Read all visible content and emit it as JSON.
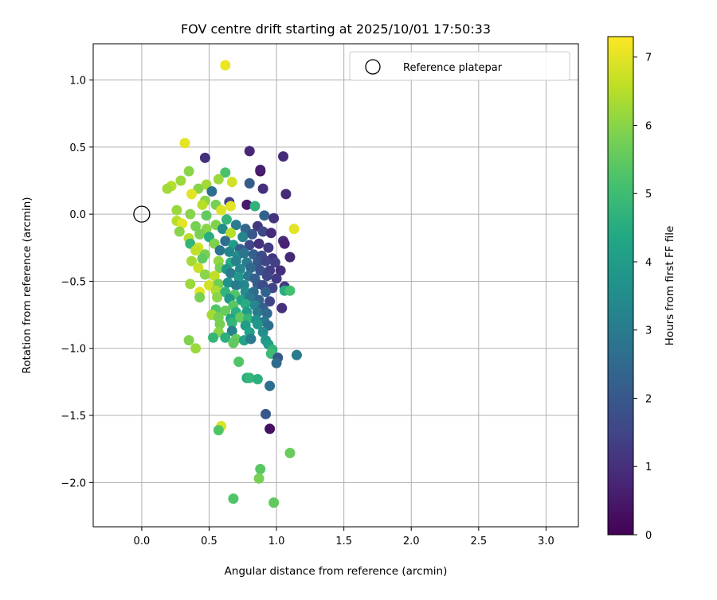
{
  "chart_data": {
    "type": "scatter",
    "title": "FOV centre drift starting at 2025/10/01 17:50:33",
    "xlabel": "Angular distance from reference (arcmin)",
    "ylabel": "Rotation from reference (arcmin)",
    "xlim": [
      -0.36,
      3.24
    ],
    "ylim": [
      -2.33,
      1.27
    ],
    "xticks": [
      0.0,
      0.5,
      1.0,
      1.5,
      2.0,
      2.5,
      3.0
    ],
    "xtick_labels": [
      "0.0",
      "0.5",
      "1.0",
      "1.5",
      "2.0",
      "2.5",
      "3.0"
    ],
    "yticks": [
      1.0,
      0.5,
      0.0,
      -0.5,
      -1.0,
      -1.5,
      -2.0
    ],
    "ytick_labels": [
      "1.0",
      "0.5",
      "0.0",
      "−0.5",
      "−1.0",
      "−1.5",
      "−2.0"
    ],
    "grid": true,
    "legend": {
      "position": "top-right",
      "entries": [
        "Reference platepar"
      ]
    },
    "reference": {
      "x": 0.0,
      "y": 0.0
    },
    "colorbar": {
      "label": "Hours from first FF file",
      "range": [
        0,
        7.3
      ],
      "ticks": [
        0,
        1,
        2,
        3,
        4,
        5,
        6,
        7
      ],
      "tick_labels": [
        "0",
        "1",
        "2",
        "3",
        "4",
        "5",
        "6",
        "7"
      ],
      "colormap": "viridis"
    },
    "points": [
      {
        "x": 0.62,
        "y": 1.11,
        "h": 7.1
      },
      {
        "x": 0.32,
        "y": 0.53,
        "h": 7.0
      },
      {
        "x": 0.47,
        "y": 0.42,
        "h": 1.0
      },
      {
        "x": 0.8,
        "y": 0.47,
        "h": 0.8
      },
      {
        "x": 1.05,
        "y": 0.43,
        "h": 0.9
      },
      {
        "x": 0.88,
        "y": 0.32,
        "h": 0.1
      },
      {
        "x": 0.88,
        "y": 0.33,
        "h": 0.6
      },
      {
        "x": 0.35,
        "y": 0.32,
        "h": 6.0
      },
      {
        "x": 0.62,
        "y": 0.31,
        "h": 5.2
      },
      {
        "x": 0.57,
        "y": 0.26,
        "h": 6.2
      },
      {
        "x": 0.67,
        "y": 0.24,
        "h": 6.8
      },
      {
        "x": 0.29,
        "y": 0.25,
        "h": 6.2
      },
      {
        "x": 0.48,
        "y": 0.22,
        "h": 6.3
      },
      {
        "x": 0.8,
        "y": 0.23,
        "h": 2.1
      },
      {
        "x": 0.22,
        "y": 0.21,
        "h": 6.5
      },
      {
        "x": 0.19,
        "y": 0.19,
        "h": 6.3
      },
      {
        "x": 0.42,
        "y": 0.19,
        "h": 6.0
      },
      {
        "x": 0.52,
        "y": 0.17,
        "h": 2.7
      },
      {
        "x": 0.9,
        "y": 0.19,
        "h": 1.0
      },
      {
        "x": 1.07,
        "y": 0.15,
        "h": 0.9
      },
      {
        "x": 0.37,
        "y": 0.15,
        "h": 7.0
      },
      {
        "x": 0.47,
        "y": 0.1,
        "h": 6.0
      },
      {
        "x": 0.55,
        "y": 0.07,
        "h": 5.8
      },
      {
        "x": 0.65,
        "y": 0.09,
        "h": 1.5
      },
      {
        "x": 0.66,
        "y": 0.06,
        "h": 7.0
      },
      {
        "x": 0.78,
        "y": 0.07,
        "h": 0.5
      },
      {
        "x": 0.84,
        "y": 0.06,
        "h": 4.7
      },
      {
        "x": 0.45,
        "y": 0.07,
        "h": 6.5
      },
      {
        "x": 0.26,
        "y": 0.03,
        "h": 6.2
      },
      {
        "x": 0.36,
        "y": 0.0,
        "h": 6.0
      },
      {
        "x": 0.48,
        "y": -0.01,
        "h": 5.5
      },
      {
        "x": 0.59,
        "y": 0.03,
        "h": 6.9
      },
      {
        "x": 0.91,
        "y": -0.01,
        "h": 2.3
      },
      {
        "x": 0.98,
        "y": -0.03,
        "h": 1.1
      },
      {
        "x": 0.26,
        "y": -0.05,
        "h": 6.5
      },
      {
        "x": 0.3,
        "y": -0.07,
        "h": 7.0
      },
      {
        "x": 0.4,
        "y": -0.09,
        "h": 5.8
      },
      {
        "x": 0.48,
        "y": -0.11,
        "h": 6.0
      },
      {
        "x": 0.55,
        "y": -0.08,
        "h": 5.9
      },
      {
        "x": 0.63,
        "y": -0.04,
        "h": 4.8
      },
      {
        "x": 0.7,
        "y": -0.08,
        "h": 3.0
      },
      {
        "x": 0.77,
        "y": -0.11,
        "h": 2.4
      },
      {
        "x": 0.86,
        "y": -0.09,
        "h": 1.2
      },
      {
        "x": 1.13,
        "y": -0.11,
        "h": 7.0
      },
      {
        "x": 0.28,
        "y": -0.13,
        "h": 6.0
      },
      {
        "x": 0.35,
        "y": -0.18,
        "h": 6.5
      },
      {
        "x": 0.43,
        "y": -0.15,
        "h": 5.8
      },
      {
        "x": 0.5,
        "y": -0.17,
        "h": 4.5
      },
      {
        "x": 0.6,
        "y": -0.11,
        "h": 3.5
      },
      {
        "x": 0.66,
        "y": -0.14,
        "h": 6.5
      },
      {
        "x": 0.75,
        "y": -0.17,
        "h": 3.3
      },
      {
        "x": 0.82,
        "y": -0.15,
        "h": 2.0
      },
      {
        "x": 0.9,
        "y": -0.13,
        "h": 1.6
      },
      {
        "x": 0.96,
        "y": -0.14,
        "h": 0.9
      },
      {
        "x": 1.05,
        "y": -0.2,
        "h": 0.9
      },
      {
        "x": 0.36,
        "y": -0.22,
        "h": 4.8
      },
      {
        "x": 0.42,
        "y": -0.25,
        "h": 6.8
      },
      {
        "x": 0.54,
        "y": -0.22,
        "h": 5.9
      },
      {
        "x": 0.62,
        "y": -0.2,
        "h": 2.6
      },
      {
        "x": 0.68,
        "y": -0.23,
        "h": 4.0
      },
      {
        "x": 0.73,
        "y": -0.26,
        "h": 2.2
      },
      {
        "x": 0.8,
        "y": -0.23,
        "h": 1.6
      },
      {
        "x": 0.87,
        "y": -0.22,
        "h": 1.0
      },
      {
        "x": 0.94,
        "y": -0.25,
        "h": 1.2
      },
      {
        "x": 1.06,
        "y": -0.22,
        "h": 0.7
      },
      {
        "x": 0.4,
        "y": -0.27,
        "h": 6.6
      },
      {
        "x": 0.47,
        "y": -0.3,
        "h": 5.8
      },
      {
        "x": 0.58,
        "y": -0.27,
        "h": 2.8
      },
      {
        "x": 0.65,
        "y": -0.28,
        "h": 3.3
      },
      {
        "x": 0.71,
        "y": -0.31,
        "h": 3.5
      },
      {
        "x": 0.76,
        "y": -0.29,
        "h": 2.8
      },
      {
        "x": 0.83,
        "y": -0.3,
        "h": 2.2
      },
      {
        "x": 0.89,
        "y": -0.31,
        "h": 1.7
      },
      {
        "x": 0.97,
        "y": -0.33,
        "h": 1.1
      },
      {
        "x": 1.1,
        "y": -0.32,
        "h": 0.8
      },
      {
        "x": 0.37,
        "y": -0.35,
        "h": 6.3
      },
      {
        "x": 0.45,
        "y": -0.33,
        "h": 5.5
      },
      {
        "x": 0.57,
        "y": -0.35,
        "h": 6.1
      },
      {
        "x": 0.66,
        "y": -0.36,
        "h": 4.5
      },
      {
        "x": 0.7,
        "y": -0.35,
        "h": 3.2
      },
      {
        "x": 0.78,
        "y": -0.36,
        "h": 3.0
      },
      {
        "x": 0.86,
        "y": -0.36,
        "h": 2.0
      },
      {
        "x": 0.92,
        "y": -0.35,
        "h": 1.5
      },
      {
        "x": 0.99,
        "y": -0.36,
        "h": 1.4
      },
      {
        "x": 0.42,
        "y": -0.4,
        "h": 6.7
      },
      {
        "x": 0.58,
        "y": -0.4,
        "h": 5.8
      },
      {
        "x": 0.63,
        "y": -0.41,
        "h": 3.9
      },
      {
        "x": 0.73,
        "y": -0.41,
        "h": 3.4
      },
      {
        "x": 0.81,
        "y": -0.4,
        "h": 2.5
      },
      {
        "x": 0.88,
        "y": -0.42,
        "h": 1.8
      },
      {
        "x": 0.95,
        "y": -0.42,
        "h": 1.3
      },
      {
        "x": 1.03,
        "y": -0.42,
        "h": 1.0
      },
      {
        "x": 0.47,
        "y": -0.45,
        "h": 6.0
      },
      {
        "x": 0.54,
        "y": -0.46,
        "h": 6.6
      },
      {
        "x": 0.66,
        "y": -0.44,
        "h": 3.0
      },
      {
        "x": 0.72,
        "y": -0.47,
        "h": 3.8
      },
      {
        "x": 0.79,
        "y": -0.46,
        "h": 2.9
      },
      {
        "x": 0.84,
        "y": -0.48,
        "h": 2.3
      },
      {
        "x": 0.93,
        "y": -0.46,
        "h": 1.5
      },
      {
        "x": 1.0,
        "y": -0.48,
        "h": 1.2
      },
      {
        "x": 0.36,
        "y": -0.52,
        "h": 6.2
      },
      {
        "x": 0.5,
        "y": -0.53,
        "h": 6.8
      },
      {
        "x": 0.57,
        "y": -0.52,
        "h": 5.7
      },
      {
        "x": 0.64,
        "y": -0.51,
        "h": 3.7
      },
      {
        "x": 0.7,
        "y": -0.53,
        "h": 3.0
      },
      {
        "x": 0.76,
        "y": -0.53,
        "h": 3.3
      },
      {
        "x": 0.86,
        "y": -0.52,
        "h": 2.1
      },
      {
        "x": 0.9,
        "y": -0.53,
        "h": 1.7
      },
      {
        "x": 0.97,
        "y": -0.55,
        "h": 1.5
      },
      {
        "x": 1.06,
        "y": -0.54,
        "h": 1.2
      },
      {
        "x": 0.43,
        "y": -0.58,
        "h": 7.0
      },
      {
        "x": 0.55,
        "y": -0.57,
        "h": 6.4
      },
      {
        "x": 0.62,
        "y": -0.58,
        "h": 4.7
      },
      {
        "x": 0.69,
        "y": -0.6,
        "h": 5.3
      },
      {
        "x": 0.77,
        "y": -0.58,
        "h": 3.6
      },
      {
        "x": 0.83,
        "y": -0.58,
        "h": 2.6
      },
      {
        "x": 0.92,
        "y": -0.58,
        "h": 2.3
      },
      {
        "x": 1.06,
        "y": -0.57,
        "h": 4.5
      },
      {
        "x": 1.1,
        "y": -0.57,
        "h": 5.1
      },
      {
        "x": 0.43,
        "y": -0.62,
        "h": 5.8
      },
      {
        "x": 0.56,
        "y": -0.62,
        "h": 6.0
      },
      {
        "x": 0.65,
        "y": -0.63,
        "h": 3.8
      },
      {
        "x": 0.74,
        "y": -0.64,
        "h": 4.2
      },
      {
        "x": 0.8,
        "y": -0.62,
        "h": 3.0
      },
      {
        "x": 0.87,
        "y": -0.64,
        "h": 2.4
      },
      {
        "x": 0.95,
        "y": -0.65,
        "h": 1.5
      },
      {
        "x": 0.68,
        "y": -0.68,
        "h": 5.4
      },
      {
        "x": 0.77,
        "y": -0.67,
        "h": 4.5
      },
      {
        "x": 0.84,
        "y": -0.68,
        "h": 3.4
      },
      {
        "x": 0.9,
        "y": -0.7,
        "h": 2.2
      },
      {
        "x": 1.04,
        "y": -0.7,
        "h": 1.0
      },
      {
        "x": 0.55,
        "y": -0.71,
        "h": 5.3
      },
      {
        "x": 0.62,
        "y": -0.72,
        "h": 5.6
      },
      {
        "x": 0.7,
        "y": -0.73,
        "h": 4.6
      },
      {
        "x": 0.78,
        "y": -0.73,
        "h": 4.0
      },
      {
        "x": 0.86,
        "y": -0.73,
        "h": 3.0
      },
      {
        "x": 0.93,
        "y": -0.74,
        "h": 2.5
      },
      {
        "x": 0.52,
        "y": -0.75,
        "h": 6.3
      },
      {
        "x": 0.57,
        "y": -0.77,
        "h": 5.8
      },
      {
        "x": 0.66,
        "y": -0.78,
        "h": 4.3
      },
      {
        "x": 0.73,
        "y": -0.77,
        "h": 5.5
      },
      {
        "x": 0.79,
        "y": -0.78,
        "h": 4.8
      },
      {
        "x": 0.85,
        "y": -0.79,
        "h": 3.6
      },
      {
        "x": 0.91,
        "y": -0.8,
        "h": 2.9
      },
      {
        "x": 0.58,
        "y": -0.82,
        "h": 5.8
      },
      {
        "x": 0.67,
        "y": -0.81,
        "h": 4.8
      },
      {
        "x": 0.77,
        "y": -0.83,
        "h": 4.0
      },
      {
        "x": 0.86,
        "y": -0.82,
        "h": 3.8
      },
      {
        "x": 0.94,
        "y": -0.83,
        "h": 2.7
      },
      {
        "x": 0.57,
        "y": -0.88,
        "h": 6.0
      },
      {
        "x": 0.67,
        "y": -0.87,
        "h": 3.2
      },
      {
        "x": 0.8,
        "y": -0.88,
        "h": 4.2
      },
      {
        "x": 0.9,
        "y": -0.88,
        "h": 3.6
      },
      {
        "x": 0.53,
        "y": -0.92,
        "h": 4.8
      },
      {
        "x": 0.62,
        "y": -0.92,
        "h": 4.6
      },
      {
        "x": 0.7,
        "y": -0.93,
        "h": 5.6
      },
      {
        "x": 0.76,
        "y": -0.94,
        "h": 4.2
      },
      {
        "x": 0.81,
        "y": -0.93,
        "h": 3.0
      },
      {
        "x": 0.92,
        "y": -0.94,
        "h": 3.8
      },
      {
        "x": 0.35,
        "y": -0.94,
        "h": 5.9
      },
      {
        "x": 0.68,
        "y": -0.96,
        "h": 5.5
      },
      {
        "x": 0.94,
        "y": -0.97,
        "h": 4.0
      },
      {
        "x": 0.4,
        "y": -1.0,
        "h": 6.2
      },
      {
        "x": 0.97,
        "y": -1.01,
        "h": 4.7
      },
      {
        "x": 0.96,
        "y": -1.04,
        "h": 5.0
      },
      {
        "x": 1.15,
        "y": -1.05,
        "h": 3.0
      },
      {
        "x": 1.01,
        "y": -1.07,
        "h": 2.0
      },
      {
        "x": 1.0,
        "y": -1.11,
        "h": 2.5
      },
      {
        "x": 0.72,
        "y": -1.1,
        "h": 5.3
      },
      {
        "x": 0.78,
        "y": -1.22,
        "h": 4.5
      },
      {
        "x": 0.8,
        "y": -1.22,
        "h": 4.8
      },
      {
        "x": 0.86,
        "y": -1.23,
        "h": 4.6
      },
      {
        "x": 0.95,
        "y": -1.28,
        "h": 2.7
      },
      {
        "x": 0.92,
        "y": -1.49,
        "h": 2.0
      },
      {
        "x": 0.59,
        "y": -1.58,
        "h": 6.9
      },
      {
        "x": 0.95,
        "y": -1.6,
        "h": 0.3
      },
      {
        "x": 0.57,
        "y": -1.61,
        "h": 5.3
      },
      {
        "x": 1.1,
        "y": -1.78,
        "h": 5.6
      },
      {
        "x": 0.88,
        "y": -1.9,
        "h": 5.4
      },
      {
        "x": 0.87,
        "y": -1.97,
        "h": 5.8
      },
      {
        "x": 0.68,
        "y": -2.12,
        "h": 5.3
      },
      {
        "x": 0.98,
        "y": -2.15,
        "h": 5.5
      }
    ]
  }
}
